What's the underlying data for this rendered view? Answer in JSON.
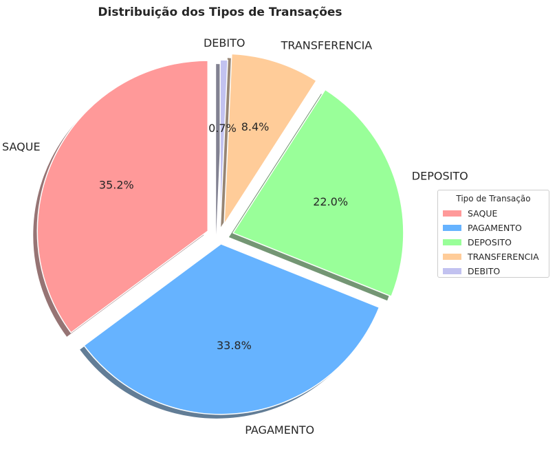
{
  "chart_data": {
    "type": "pie",
    "title": "Distribuição dos Tipos de Transações",
    "categories": [
      "SAQUE",
      "PAGAMENTO",
      "DEPOSITO",
      "TRANSFERENCIA",
      "DEBITO"
    ],
    "values": [
      35.2,
      33.8,
      22.0,
      8.4,
      0.7
    ],
    "labels_pct": [
      "35.2%",
      "33.8%",
      "22.0%",
      "8.4%",
      "0.7%"
    ],
    "colors": [
      "#ff9999",
      "#66b3ff",
      "#99ff99",
      "#ffcc99",
      "#c2c2f0"
    ],
    "start_angle_deg": 90,
    "direction": "counterclockwise",
    "shadow": true,
    "exploded": true,
    "legend": {
      "title": "Tipo de Transação",
      "placement": "right"
    }
  }
}
